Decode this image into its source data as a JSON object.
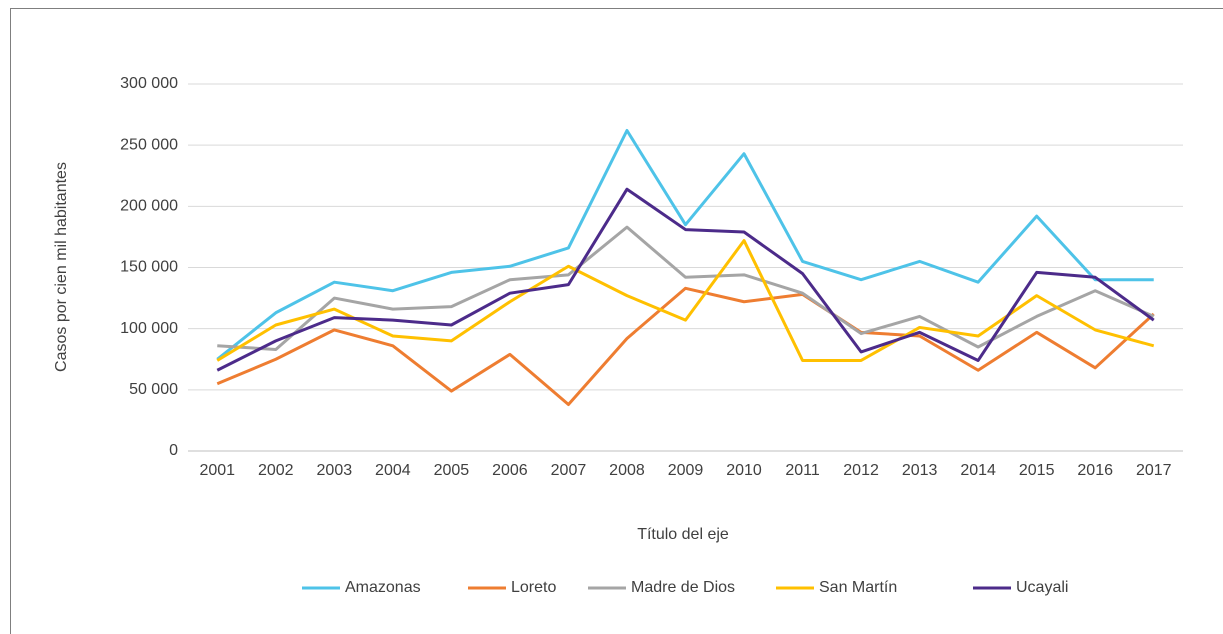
{
  "chart_data": {
    "type": "line",
    "x_label": "Título del eje",
    "y_label": "Casos por cien mil habitantes",
    "categories": [
      "2001",
      "2002",
      "2003",
      "2004",
      "2005",
      "2006",
      "2007",
      "2008",
      "2009",
      "2010",
      "2011",
      "2012",
      "2013",
      "2014",
      "2015",
      "2016",
      "2017"
    ],
    "series": [
      {
        "name": "Amazonas",
        "color": "#4ec3e8",
        "values": [
          75000,
          113000,
          138000,
          131000,
          146000,
          151000,
          166000,
          262000,
          185000,
          243000,
          155000,
          140000,
          155000,
          138000,
          192000,
          140000,
          140000
        ]
      },
      {
        "name": "Loreto",
        "color": "#ee7d31",
        "values": [
          55000,
          75000,
          99000,
          86000,
          49000,
          79000,
          38000,
          92000,
          133000,
          122000,
          128000,
          97000,
          94000,
          66000,
          97000,
          68000,
          112000
        ]
      },
      {
        "name": "Madre de Dios",
        "color": "#a5a5a5",
        "values": [
          86000,
          83000,
          125000,
          116000,
          118000,
          140000,
          144000,
          183000,
          142000,
          144000,
          129000,
          96000,
          110000,
          85000,
          110000,
          131000,
          110000
        ]
      },
      {
        "name": "San Martín",
        "color": "#ffc000",
        "values": [
          74000,
          103000,
          116000,
          94000,
          90000,
          122000,
          151000,
          127000,
          107000,
          172000,
          74000,
          74000,
          101000,
          94000,
          127000,
          99000,
          86000
        ]
      },
      {
        "name": "Ucayali",
        "color": "#4c2b8a",
        "values": [
          66000,
          90000,
          109000,
          107000,
          103000,
          129000,
          136000,
          214000,
          181000,
          179000,
          145000,
          81000,
          97000,
          74000,
          146000,
          142000,
          107000
        ]
      }
    ],
    "ylim": [
      0,
      300000
    ],
    "yticks": [
      0,
      {
        "value": 50000,
        "label": "50 000"
      },
      {
        "value": 100000,
        "label": "100 000"
      },
      {
        "value": 150000,
        "label": "150 000"
      },
      {
        "value": 200000,
        "label": "200 000"
      },
      {
        "value": 250000,
        "label": "250 000"
      },
      {
        "value": 300000,
        "label": "300 000"
      }
    ],
    "grid": true,
    "legend": "bottom"
  }
}
